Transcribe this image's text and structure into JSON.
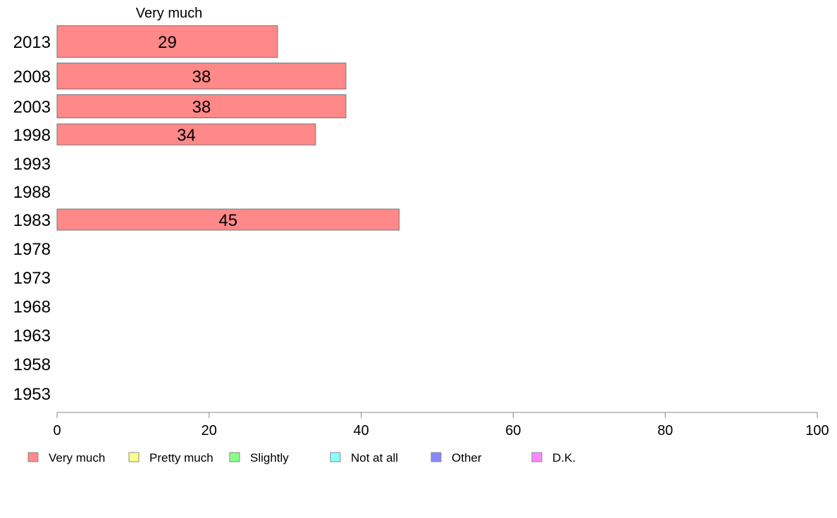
{
  "chart_data": {
    "type": "bar",
    "orientation": "horizontal",
    "column_title": "Very much",
    "categories": [
      "2013",
      "2008",
      "2003",
      "1998",
      "1993",
      "1988",
      "1983",
      "1978",
      "1973",
      "1968",
      "1963",
      "1958",
      "1953"
    ],
    "series": [
      {
        "name": "Very much",
        "values": [
          29,
          38,
          38,
          34,
          null,
          null,
          45,
          null,
          null,
          null,
          null,
          null,
          null
        ]
      }
    ],
    "xlim": [
      0,
      100
    ],
    "xticks": [
      0,
      20,
      40,
      60,
      80,
      100
    ],
    "legend": {
      "placement": "bottom",
      "entries": [
        {
          "label": "Very much",
          "color": "#ff8888"
        },
        {
          "label": "Pretty much",
          "color": "#ffff88"
        },
        {
          "label": "Slightly",
          "color": "#88ff88"
        },
        {
          "label": "Not at all",
          "color": "#88ffff"
        },
        {
          "label": "Other",
          "color": "#8888ff"
        },
        {
          "label": "D.K.",
          "color": "#ff88ff"
        }
      ]
    },
    "bar_color": "#ff8888",
    "bar_border": "#777777",
    "axis_color": "#888888",
    "grid": false
  }
}
